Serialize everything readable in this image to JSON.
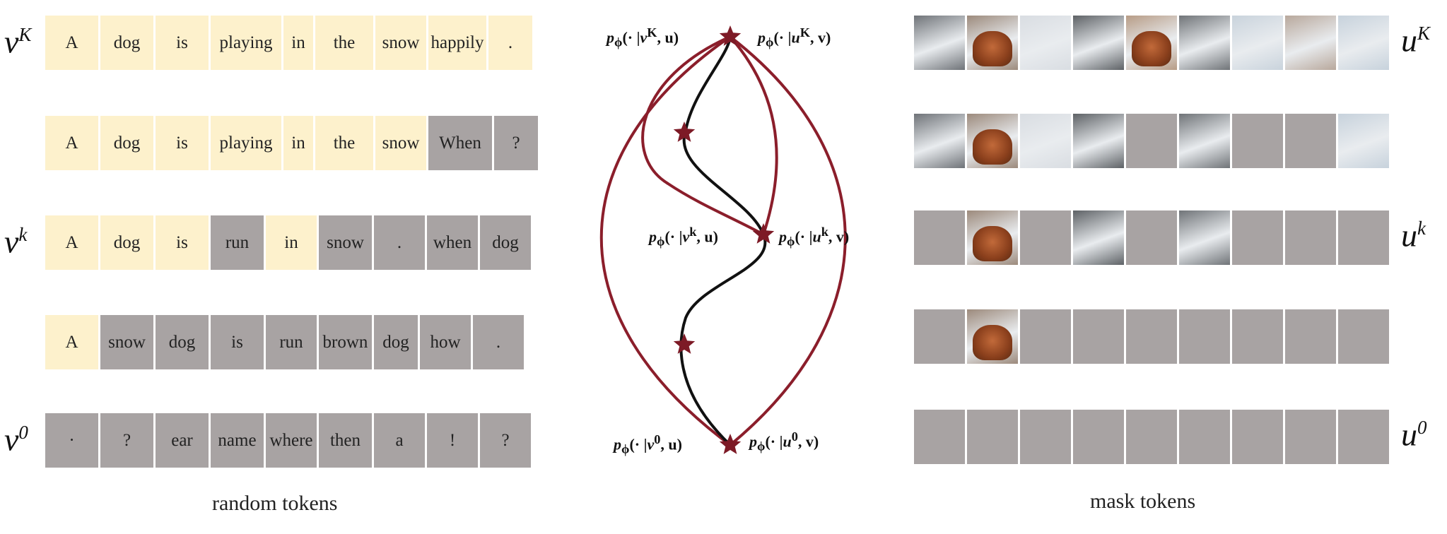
{
  "left_panel": {
    "caption": "random tokens",
    "rows": [
      {
        "label_base": "v",
        "label_sup": "K",
        "tokens": [
          {
            "text": "A",
            "state": "clean"
          },
          {
            "text": "dog",
            "state": "clean"
          },
          {
            "text": "is",
            "state": "clean"
          },
          {
            "text": "playing",
            "state": "clean"
          },
          {
            "text": "in",
            "state": "clean"
          },
          {
            "text": "the",
            "state": "clean"
          },
          {
            "text": "snow",
            "state": "clean"
          },
          {
            "text": "happily",
            "state": "clean"
          },
          {
            "text": ".",
            "state": "clean"
          }
        ]
      },
      {
        "label_base": "",
        "label_sup": "",
        "tokens": [
          {
            "text": "A",
            "state": "clean"
          },
          {
            "text": "dog",
            "state": "clean"
          },
          {
            "text": "is",
            "state": "clean"
          },
          {
            "text": "playing",
            "state": "clean"
          },
          {
            "text": "in",
            "state": "clean"
          },
          {
            "text": "the",
            "state": "clean"
          },
          {
            "text": "snow",
            "state": "clean"
          },
          {
            "text": "When",
            "state": "noisy"
          },
          {
            "text": "?",
            "state": "noisy"
          }
        ]
      },
      {
        "label_base": "v",
        "label_sup": "k",
        "tokens": [
          {
            "text": "A",
            "state": "clean"
          },
          {
            "text": "dog",
            "state": "clean"
          },
          {
            "text": "is",
            "state": "clean"
          },
          {
            "text": "run",
            "state": "noisy"
          },
          {
            "text": "in",
            "state": "clean"
          },
          {
            "text": "snow",
            "state": "noisy"
          },
          {
            "text": ".",
            "state": "noisy"
          },
          {
            "text": "when",
            "state": "noisy"
          },
          {
            "text": "dog",
            "state": "noisy"
          }
        ]
      },
      {
        "label_base": "",
        "label_sup": "",
        "tokens": [
          {
            "text": "A",
            "state": "clean"
          },
          {
            "text": "snow",
            "state": "noisy"
          },
          {
            "text": "dog",
            "state": "noisy"
          },
          {
            "text": "is",
            "state": "noisy"
          },
          {
            "text": "run",
            "state": "noisy"
          },
          {
            "text": "brown",
            "state": "noisy"
          },
          {
            "text": "dog",
            "state": "noisy"
          },
          {
            "text": "how",
            "state": "noisy"
          },
          {
            "text": ".",
            "state": "noisy"
          }
        ]
      },
      {
        "label_base": "v",
        "label_sup": "0",
        "tokens": [
          {
            "text": "·",
            "state": "noisy"
          },
          {
            "text": "?",
            "state": "noisy"
          },
          {
            "text": "ear",
            "state": "noisy"
          },
          {
            "text": "name",
            "state": "noisy"
          },
          {
            "text": "where",
            "state": "noisy"
          },
          {
            "text": "then",
            "state": "noisy"
          },
          {
            "text": "a",
            "state": "noisy"
          },
          {
            "text": "!",
            "state": "noisy"
          },
          {
            "text": "?",
            "state": "noisy"
          }
        ]
      }
    ]
  },
  "right_panel": {
    "caption": "mask tokens",
    "rows": [
      {
        "label_base": "u",
        "label_sup": "K",
        "patches": [
          1,
          1,
          1,
          1,
          1,
          1,
          1,
          1,
          1
        ]
      },
      {
        "label_base": "",
        "label_sup": "",
        "patches": [
          1,
          1,
          1,
          1,
          0,
          1,
          0,
          0,
          1
        ]
      },
      {
        "label_base": "u",
        "label_sup": "k",
        "patches": [
          0,
          1,
          0,
          1,
          0,
          1,
          0,
          0,
          0
        ]
      },
      {
        "label_base": "",
        "label_sup": "",
        "patches": [
          0,
          1,
          0,
          0,
          0,
          0,
          0,
          0,
          0
        ]
      },
      {
        "label_base": "u",
        "label_sup": "0",
        "patches": [
          0,
          0,
          0,
          0,
          0,
          0,
          0,
          0,
          0
        ]
      }
    ]
  },
  "middle": {
    "top_left": {
      "p": "p",
      "sub": "ϕ",
      "arg": "(· |",
      "var": "v",
      "sup": "K",
      "cond": ", u)"
    },
    "top_right": {
      "p": "p",
      "sub": "ϕ",
      "arg": "(· |",
      "var": "u",
      "sup": "K",
      "cond": ", v)"
    },
    "mid_left": {
      "p": "p",
      "sub": "ϕ",
      "arg": "(· |",
      "var": "v",
      "sup": "k",
      "cond": ", u)"
    },
    "mid_right": {
      "p": "p",
      "sub": "ϕ",
      "arg": "(· |",
      "var": "u",
      "sup": "k",
      "cond": ", v)"
    },
    "bot_left": {
      "p": "p",
      "sub": "ϕ",
      "arg": "(· |",
      "var": "v",
      "sup": "0",
      "cond": ", u)"
    },
    "bot_right": {
      "p": "p",
      "sub": "ϕ",
      "arg": "(· |",
      "var": "u",
      "sup": "0",
      "cond": ", v)"
    }
  },
  "colors": {
    "clean": "#fdf1cc",
    "noisy": "#a8a3a3",
    "red_path": "#8b1e2b",
    "black_path": "#111111",
    "star": "#7d1a26"
  }
}
